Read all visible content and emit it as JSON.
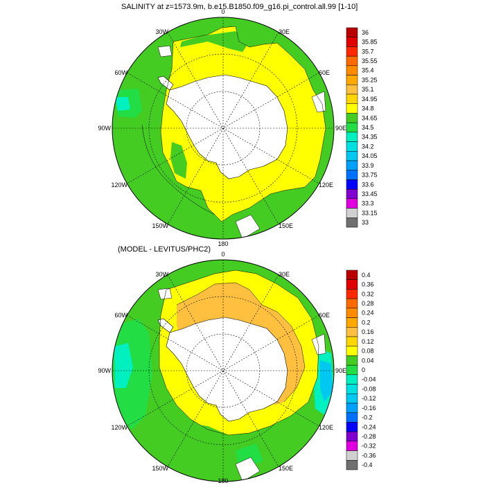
{
  "panels": [
    {
      "title": "SALINITY at z=1573.9m, b.e15.B1850.f09_g16.pi_control.all.99 [1-10]",
      "lon_labels": [
        "0",
        "30E",
        "60E",
        "90E",
        "120E",
        "150E",
        "180",
        "150W",
        "120W",
        "90W",
        "60W",
        "30W"
      ],
      "colorbar": {
        "labels": [
          "36",
          "35.85",
          "35.7",
          "35.55",
          "35.4",
          "35.25",
          "35.1",
          "34.95",
          "34.8",
          "34.65",
          "34.5",
          "34.35",
          "34.2",
          "34.05",
          "33.9",
          "33.75",
          "33.6",
          "33.45",
          "33.3",
          "33.15",
          "33"
        ],
        "colors": [
          "#b80000",
          "#e00000",
          "#ff2800",
          "#ff6a00",
          "#ff8c00",
          "#ffa800",
          "#ffc040",
          "#ffd700",
          "#ffff00",
          "#44cc22",
          "#22dd44",
          "#00f0c0",
          "#00e0e0",
          "#00c8f0",
          "#00a0ff",
          "#0070ff",
          "#0000ff",
          "#8000d0",
          "#e000e0",
          "#d0d0d0",
          "#707070"
        ]
      }
    },
    {
      "title": "(MODEL - LEVITUS/PHC2)",
      "lon_labels": [
        "0",
        "30E",
        "60E",
        "90E",
        "120E",
        "150E",
        "180",
        "150W",
        "120W",
        "90W",
        "60W",
        "30W"
      ],
      "colorbar": {
        "labels": [
          "0.4",
          "0.36",
          "0.32",
          "0.28",
          "0.24",
          "0.2",
          "0.16",
          "0.12",
          "0.08",
          "0.04",
          "0",
          "-0.04",
          "-0.08",
          "-0.12",
          "-0.16",
          "-0.2",
          "-0.24",
          "-0.28",
          "-0.32",
          "-0.36",
          "-0.4"
        ],
        "colors": [
          "#b80000",
          "#e00000",
          "#ff2800",
          "#ff6a00",
          "#ff8c00",
          "#ffa800",
          "#ffc040",
          "#ffd700",
          "#ffff00",
          "#44cc22",
          "#22dd44",
          "#00f0c0",
          "#00e0e0",
          "#00c8f0",
          "#00a0ff",
          "#0070ff",
          "#0000ff",
          "#8000d0",
          "#e000e0",
          "#d0d0d0",
          "#707070"
        ]
      }
    }
  ]
}
